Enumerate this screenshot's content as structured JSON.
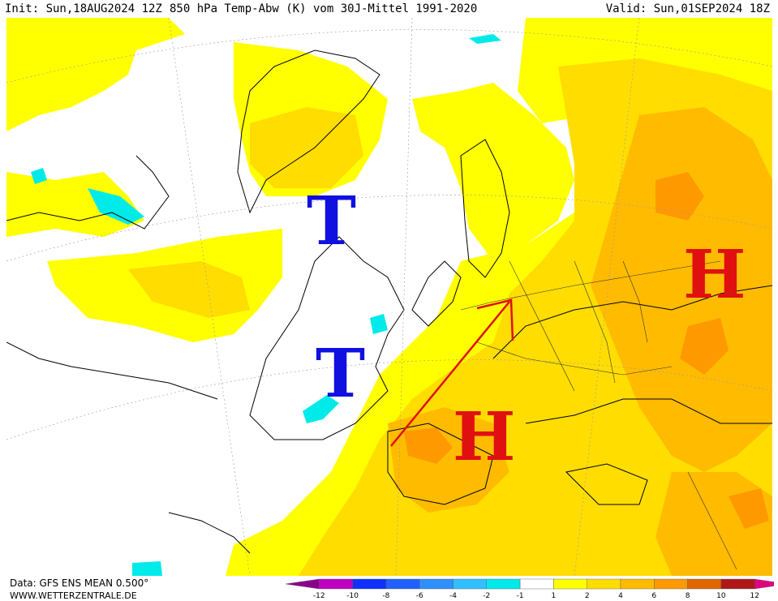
{
  "header": {
    "init": "Init: Sun,18AUG2024 12Z",
    "title": "850 hPa Temp-Abw (K) vom 30J-Mittel 1991-2020",
    "valid": "Valid: Sun,01SEP2024 18Z"
  },
  "markers": [
    {
      "label": "T",
      "kind": "low",
      "color": "#1010e0"
    },
    {
      "label": "T",
      "kind": "low",
      "color": "#1010e0"
    },
    {
      "label": "H",
      "kind": "high",
      "color": "#e01010"
    },
    {
      "label": "H",
      "kind": "high",
      "color": "#e01010"
    }
  ],
  "footer": {
    "data_source": "Data: GFS ENS MEAN 0.500°",
    "url": "WWW.WETTERZENTRALE.DE"
  },
  "legend": {
    "ticks": [
      "-12",
      "-10",
      "-8",
      "-6",
      "-4",
      "-2",
      "-1",
      "1",
      "2",
      "4",
      "6",
      "8",
      "10",
      "12"
    ],
    "colors": [
      "#8b008b",
      "#c000c0",
      "#1030ff",
      "#2060ff",
      "#3090ff",
      "#30c0ff",
      "#00eaea",
      "#ffffff",
      "#ffff00",
      "#ffdd00",
      "#ffbb00",
      "#ff9900",
      "#e06600",
      "#b01818",
      "#e00080"
    ]
  }
}
